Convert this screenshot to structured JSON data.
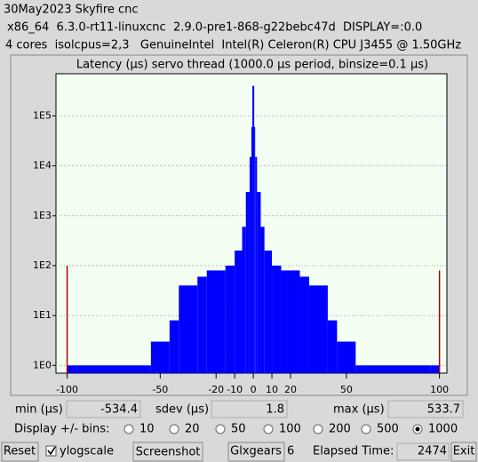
{
  "header": {
    "line1": "30May2023 Skyfire cnc",
    "line2": "x86_64  6.3.0-rt11-linuxcnc  2.9.0-pre1-868-g22bebc47d  DISPLAY=:0.0",
    "line3": "4 cores  isolcpus=2,3   GenuineIntel  Intel(R) Celeron(R) CPU J3455 @ 1.50GHz"
  },
  "chart_data": {
    "type": "histogram",
    "title": "Latency (µs) servo thread (1000.0 µs period, binsize=0.1 µs)",
    "bins": [
      -100,
      -95,
      -55,
      -45,
      -40,
      -30,
      -25,
      -15,
      -10,
      -6,
      -4,
      -2,
      -1,
      -0.5,
      0.5,
      1,
      2,
      4,
      6,
      10,
      15,
      25,
      30,
      40,
      45,
      55,
      95,
      100
    ],
    "values": [
      1,
      1,
      3,
      8,
      40,
      60,
      80,
      100,
      200,
      600,
      3000,
      15000,
      60000,
      400000,
      60000,
      15000,
      3000,
      600,
      200,
      100,
      80,
      60,
      40,
      8,
      3,
      1,
      1
    ],
    "color": "#0000ff",
    "overflow": [
      {
        "x": -100,
        "value": 100
      },
      {
        "x": 100,
        "value": 80
      }
    ],
    "overflow_color": "#b00000",
    "xlim": [
      -106,
      104
    ],
    "xticks": [
      -100,
      -50,
      -20,
      -10,
      0,
      10,
      20,
      50,
      100
    ],
    "ylim": [
      0.7,
      700000
    ],
    "log_scale": true,
    "grid": true,
    "yticks": [
      {
        "value": 1,
        "label": "1E0"
      },
      {
        "value": 10,
        "label": "1E1"
      },
      {
        "value": 100,
        "label": "1E2"
      },
      {
        "value": 1000,
        "label": "1E3"
      },
      {
        "value": 10000,
        "label": "1E4"
      },
      {
        "value": 100000,
        "label": "1E5"
      }
    ]
  },
  "stats": {
    "min_label": "min (µs)",
    "min": -534.4,
    "sdev_label": "sdev (µs)",
    "sdev": 1.8,
    "max_label": "max (µs)",
    "max": 533.7
  },
  "bins_control": {
    "label": "Display +/- bins:",
    "options": [
      10,
      20,
      50,
      100,
      200,
      500,
      1000
    ],
    "selected": 6
  },
  "buttons": {
    "reset": "Reset",
    "ylogscale": "ylogscale",
    "ylogscale_checked": true,
    "screenshot": "Screenshot",
    "glxgears": "Glxgears",
    "glxgears_count": 6,
    "elapsed_label": "Elapsed Time:",
    "elapsed": 2474,
    "exit": "Exit"
  }
}
